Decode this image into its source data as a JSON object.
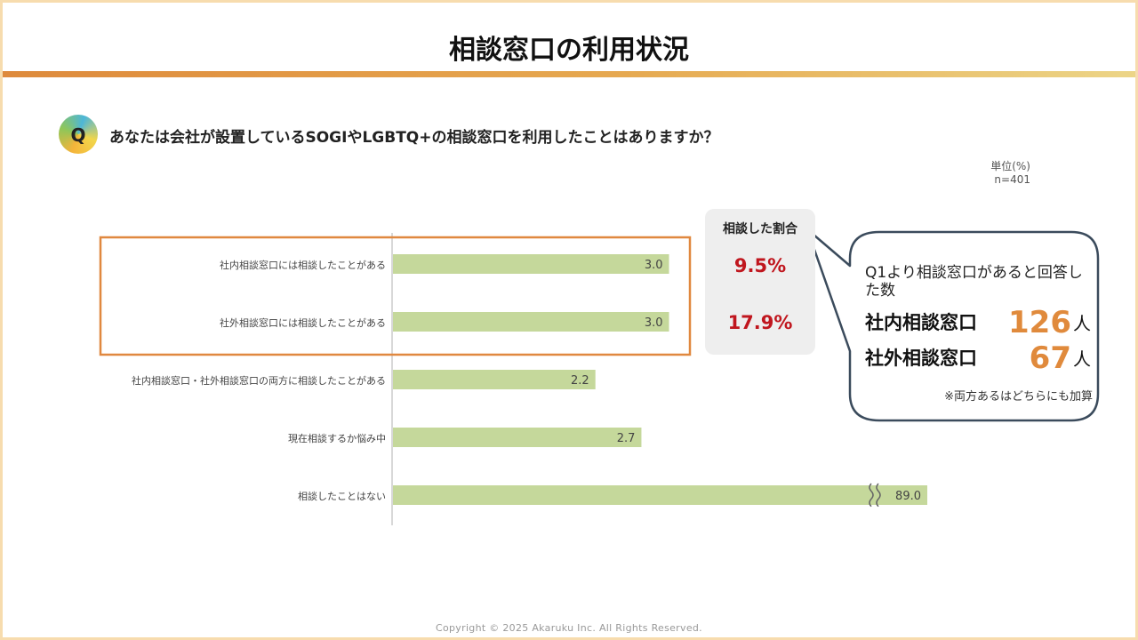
{
  "title": "相談窓口の利用状況",
  "question": {
    "badge": "Q",
    "text": "あなたは会社が設置しているSOGIやLGBTQ+の相談窓口を利用したことはありますか？"
  },
  "unit_label": "単位(%)",
  "sample_size": "n=401",
  "ratio_panel": {
    "heading": "相談した割合",
    "values": [
      "9.5%",
      "17.9%"
    ]
  },
  "callout": {
    "text": "Q1より相談窓口があると回答した数",
    "rows": [
      {
        "name": "社内相談窓口",
        "count": "126",
        "suffix": "人"
      },
      {
        "name": "社外相談窓口",
        "count": "67",
        "suffix": "人"
      }
    ],
    "note": "※両方あるはどちらにも加算"
  },
  "chart_data": {
    "type": "bar",
    "orientation": "horizontal",
    "categories": [
      "社内相談窓口には相談したことがある",
      "社外相談窓口には相談したことがある",
      "社内相談窓口・社外相談窓口の両方に相談したことがある",
      "現在相談するか悩み中",
      "相談したことはない"
    ],
    "values": [
      3.0,
      3.0,
      2.2,
      2.7,
      89.0
    ],
    "value_labels": [
      "3.0",
      "3.0",
      "2.2",
      "2.7",
      "89.0"
    ],
    "axis_break": {
      "category_index": 4,
      "note": "bar shown with a broken axis (wavy break mark)"
    },
    "highlighted_categories": [
      0,
      1
    ],
    "colors": {
      "bar": "#c5d89b",
      "highlight_frame": "#e0883f",
      "axis": "#b0b0b0"
    },
    "unit": "%"
  },
  "copyright": "Copyright © 2025 Akaruku Inc. All Rights Reserved."
}
